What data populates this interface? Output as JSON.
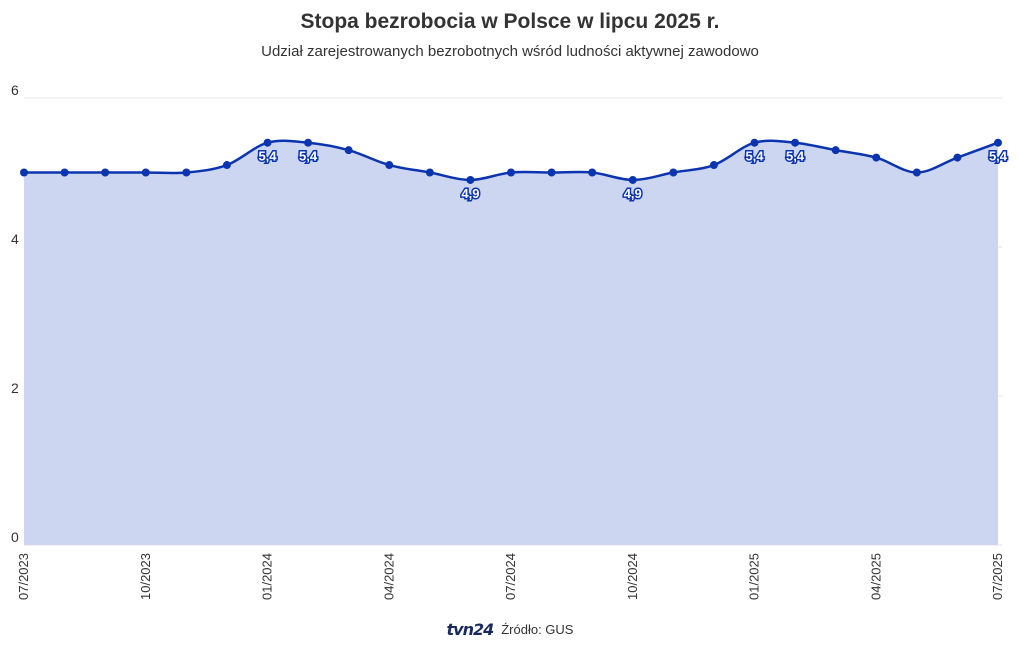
{
  "chart_data": {
    "type": "area",
    "title": "Stopa bezrobocia w Polsce w lipcu 2025 r.",
    "subtitle": "Udział zarejestrowanych bezrobotnych wśród ludności aktywnej zawodowo",
    "xlabel": "",
    "ylabel": "",
    "ylim": [
      0,
      6
    ],
    "yticks": [
      "0",
      "2",
      "4",
      "6"
    ],
    "grid": true,
    "x": [
      "07/2023",
      "08/2023",
      "09/2023",
      "10/2023",
      "11/2023",
      "12/2023",
      "01/2024",
      "02/2024",
      "03/2024",
      "04/2024",
      "05/2024",
      "06/2024",
      "07/2024",
      "08/2024",
      "09/2024",
      "10/2024",
      "11/2024",
      "12/2024",
      "01/2025",
      "02/2025",
      "03/2025",
      "04/2025",
      "05/2025",
      "06/2025",
      "07/2025"
    ],
    "xtick_labels": [
      "07/2023",
      "10/2023",
      "01/2024",
      "04/2024",
      "07/2024",
      "10/2024",
      "01/2025",
      "04/2025",
      "07/2025"
    ],
    "series": [
      {
        "values": [
          5.0,
          5.0,
          5.0,
          5.0,
          5.0,
          5.1,
          5.4,
          5.4,
          5.3,
          5.1,
          5.0,
          4.9,
          5.0,
          5.0,
          5.0,
          4.9,
          5.0,
          5.1,
          5.4,
          5.4,
          5.3,
          5.2,
          5.0,
          5.2,
          5.4
        ]
      }
    ],
    "data_labels": [
      {
        "index": 6,
        "text": "5,4"
      },
      {
        "index": 7,
        "text": "5,4"
      },
      {
        "index": 11,
        "text": "4,9"
      },
      {
        "index": 15,
        "text": "4,9"
      },
      {
        "index": 18,
        "text": "5,4"
      },
      {
        "index": 19,
        "text": "5,4"
      },
      {
        "index": 24,
        "text": "5,4"
      }
    ],
    "colors": {
      "line": "#0b34b0",
      "fill": "#cdd6f1",
      "grid": "#e4e4e4"
    }
  },
  "footer": {
    "logo": "tvn24",
    "source": "Źródło: GUS"
  }
}
